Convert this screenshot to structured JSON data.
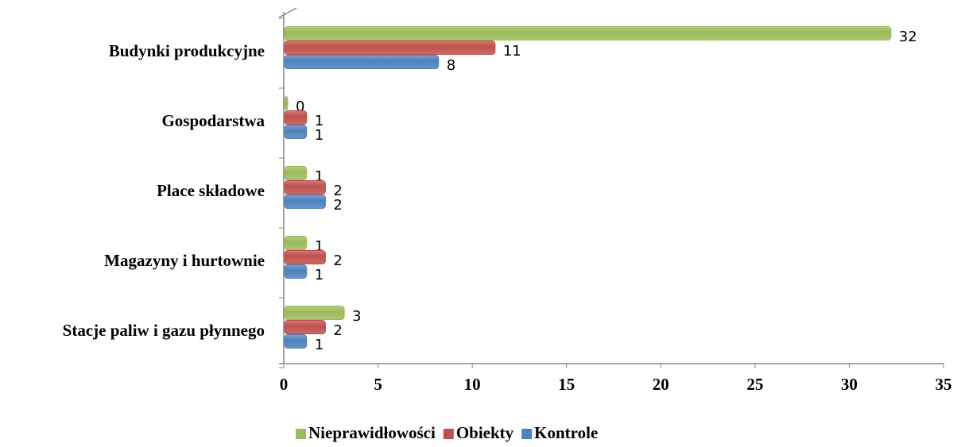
{
  "chart_data": {
    "type": "bar",
    "orientation": "horizontal",
    "categories": [
      "Budynki produkcyjne",
      "Gospodarstwa",
      "Place składowe",
      "Magazyny i hurtownie",
      "Stacje paliw i gazu płynnego"
    ],
    "series": [
      {
        "name": "Nieprawidłowości",
        "color": "#9bbb59",
        "values": [
          32,
          0,
          1,
          1,
          3
        ]
      },
      {
        "name": "Obiekty",
        "color": "#c0504d",
        "values": [
          11,
          1,
          2,
          2,
          2
        ]
      },
      {
        "name": "Kontrole",
        "color": "#4f81bd",
        "values": [
          8,
          1,
          2,
          1,
          1
        ]
      }
    ],
    "xlim": [
      0,
      35
    ],
    "xticks": [
      0,
      5,
      10,
      15,
      20,
      25,
      30,
      35
    ],
    "legend": "bottom"
  }
}
